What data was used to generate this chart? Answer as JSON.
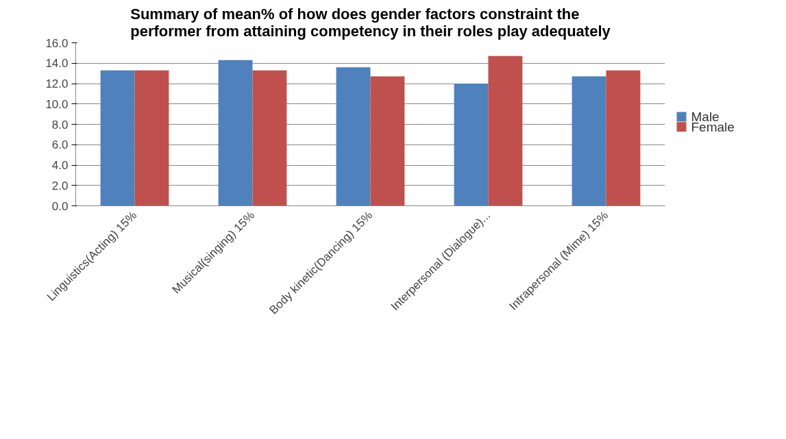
{
  "chart_data": {
    "type": "bar",
    "title": "Summary of mean% of how does gender factors constraint the\nperformer from attaining competency in their roles play adequately",
    "categories": [
      "Linguistics(Acting) 15%",
      "Musical(singing) 15%",
      "Body kinetic(Dancing) 15%",
      "Interpersonal (Dialogue)...",
      "Intrapersonal (Mime) 15%"
    ],
    "series": [
      {
        "name": "Male",
        "color": "#4f81bd",
        "values": [
          13.3,
          14.3,
          13.6,
          12.0,
          12.7
        ]
      },
      {
        "name": "Female",
        "color": "#c0504d",
        "values": [
          13.3,
          13.3,
          12.7,
          14.7,
          13.3
        ]
      }
    ],
    "ylim": [
      0,
      16
    ],
    "yticks": [
      {
        "value": 0,
        "label": "0.0"
      },
      {
        "value": 2,
        "label": "2.0"
      },
      {
        "value": 4,
        "label": "4.0"
      },
      {
        "value": 6,
        "label": "6.0"
      },
      {
        "value": 8,
        "label": "8.0"
      },
      {
        "value": 10,
        "label": "10.0"
      },
      {
        "value": 12,
        "label": "12.0"
      },
      {
        "value": 14,
        "label": "14.0"
      },
      {
        "value": 16,
        "label": "16.0"
      }
    ],
    "grid": "y",
    "legend": "right"
  }
}
